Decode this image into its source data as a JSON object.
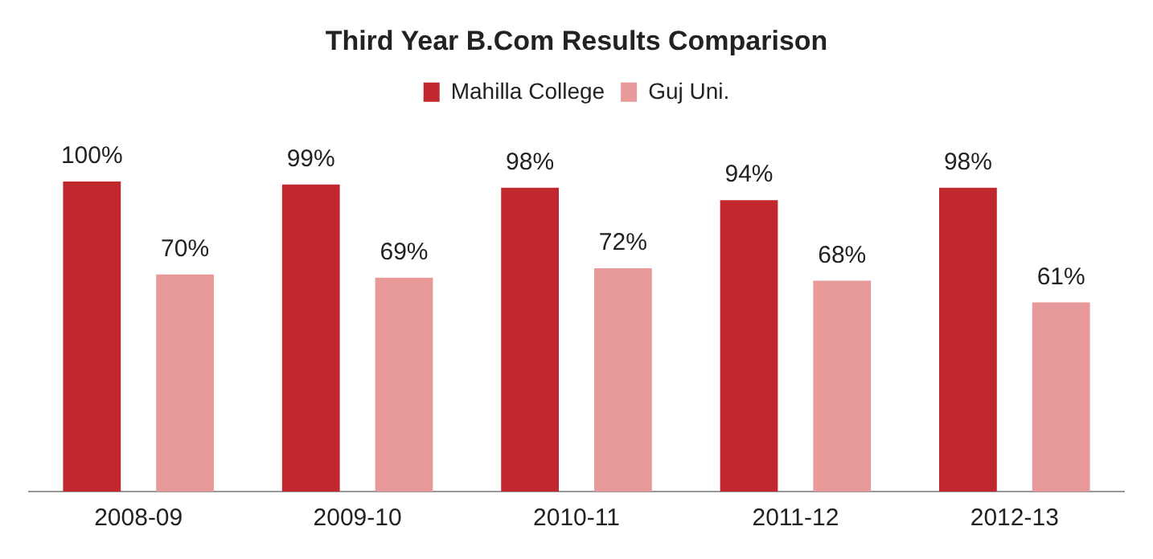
{
  "chart_data": {
    "type": "bar",
    "title": "Third Year B.Com Results Comparison",
    "categories": [
      "2008-09",
      "2009-10",
      "2010-11",
      "2011-12",
      "2012-13"
    ],
    "series": [
      {
        "name": "Mahilla College",
        "color": "#c0282d",
        "values": [
          100,
          99,
          98,
          94,
          98
        ],
        "value_labels": [
          "100%",
          "99%",
          "98%",
          "94%",
          "98%"
        ]
      },
      {
        "name": "Guj Uni.",
        "color": "#e8999a",
        "values": [
          70,
          69,
          72,
          68,
          61
        ],
        "value_labels": [
          "70%",
          "69%",
          "72%",
          "68%",
          "61%"
        ]
      }
    ],
    "legend": "top",
    "grid": false
  }
}
